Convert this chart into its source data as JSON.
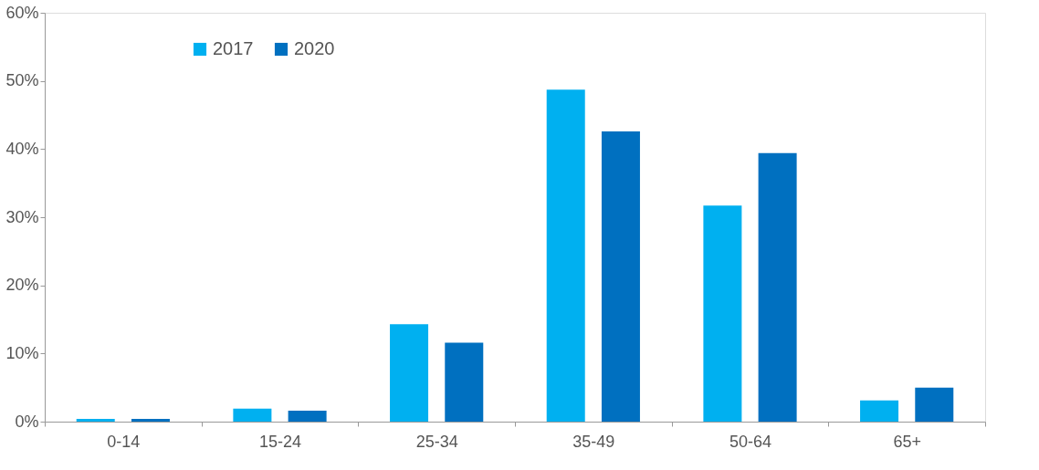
{
  "chart_data": {
    "type": "bar",
    "categories": [
      "0-14",
      "15-24",
      "25-34",
      "35-49",
      "50-64",
      "65+"
    ],
    "series": [
      {
        "name": "2017",
        "color": "#00b0f0",
        "values": [
          0.4,
          1.9,
          14.3,
          48.7,
          31.7,
          3.1
        ]
      },
      {
        "name": "2020",
        "color": "#0070c0",
        "values": [
          0.4,
          1.6,
          11.6,
          42.6,
          39.4,
          5.0
        ]
      }
    ],
    "ylim": [
      0,
      60
    ],
    "yticks": [
      {
        "value": 0,
        "label": "0%"
      },
      {
        "value": 10,
        "label": "10%"
      },
      {
        "value": 20,
        "label": "20%"
      },
      {
        "value": 30,
        "label": "30%"
      },
      {
        "value": 40,
        "label": "40%"
      },
      {
        "value": 50,
        "label": "50%"
      },
      {
        "value": 60,
        "label": "60%"
      }
    ],
    "grid": false,
    "legend": "top left"
  }
}
